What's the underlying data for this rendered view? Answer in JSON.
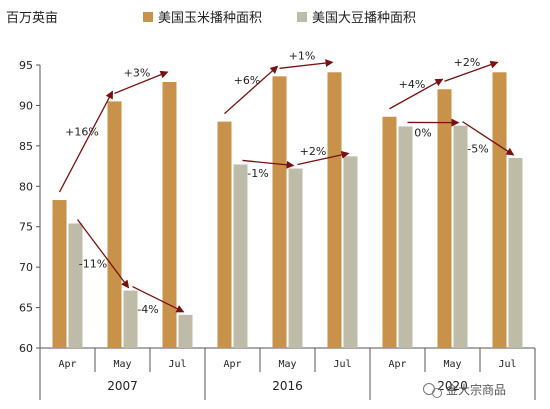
{
  "chart_data": {
    "type": "bar",
    "unit_label": "百万英亩",
    "ylim": [
      60,
      95
    ],
    "yticks": [
      60,
      65,
      70,
      75,
      80,
      85,
      90,
      95
    ],
    "groups": [
      {
        "year": "2007",
        "months": [
          "Apr",
          "May",
          "Jul"
        ]
      },
      {
        "year": "2016",
        "months": [
          "Apr",
          "May",
          "Jul"
        ]
      },
      {
        "year": "2020",
        "months": [
          "Apr",
          "May",
          "Jul"
        ]
      }
    ],
    "categories": [
      "Apr",
      "May",
      "Jul",
      "Apr",
      "May",
      "Jul",
      "Apr",
      "May",
      "Jul"
    ],
    "series": [
      {
        "name": "美国玉米播种面积",
        "color": "#c8924a",
        "values": [
          78.3,
          90.5,
          92.9,
          88.0,
          93.6,
          94.1,
          88.6,
          92.0,
          94.1
        ]
      },
      {
        "name": "美国大豆播种面积",
        "color": "#bebca8",
        "values": [
          75.4,
          67.1,
          64.1,
          82.7,
          82.2,
          83.7,
          87.4,
          87.5,
          83.5
        ]
      }
    ],
    "annotations": [
      {
        "text": "+16%",
        "series": 0,
        "from": 0,
        "to": 1
      },
      {
        "text": "+3%",
        "series": 0,
        "from": 1,
        "to": 2
      },
      {
        "text": "-11%",
        "series": 1,
        "from": 0,
        "to": 1
      },
      {
        "text": "-4%",
        "series": 1,
        "from": 1,
        "to": 2
      },
      {
        "text": "+6%",
        "series": 0,
        "from": 3,
        "to": 4
      },
      {
        "text": "+1%",
        "series": 0,
        "from": 4,
        "to": 5
      },
      {
        "text": "-1%",
        "series": 1,
        "from": 3,
        "to": 4
      },
      {
        "text": "+2%",
        "series": 1,
        "from": 4,
        "to": 5
      },
      {
        "text": "+4%",
        "series": 0,
        "from": 6,
        "to": 7
      },
      {
        "text": "+2%",
        "series": 0,
        "from": 7,
        "to": 8
      },
      {
        "text": "0%",
        "series": 1,
        "from": 6,
        "to": 7
      },
      {
        "text": "-5%",
        "series": 1,
        "from": 7,
        "to": 8
      }
    ],
    "arrow_color": "#7a1010",
    "grid": false,
    "legend_position": "top"
  },
  "watermark": "金大宗商品"
}
